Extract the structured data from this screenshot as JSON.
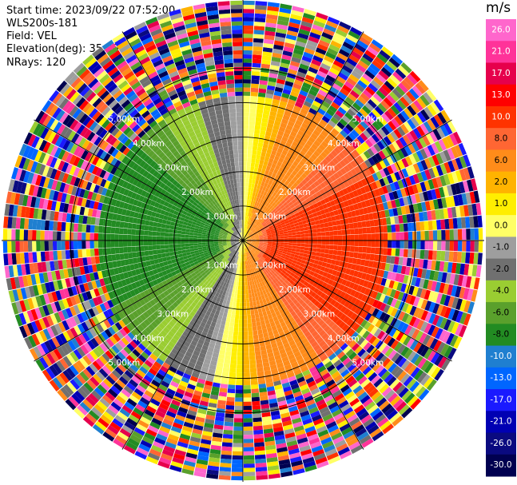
{
  "header": {
    "start_time": "Start time: 2023/09/22 07:52:00",
    "instrument": "WLS200s-181",
    "field": "Field: VEL",
    "elevation": "Elevation(deg): 35.30",
    "nrays": "NRays: 120"
  },
  "colorbar": {
    "unit": "m/s",
    "ticks": [
      "26.0",
      "21.0",
      "17.0",
      "13.0",
      "10.0",
      "8.0",
      "6.0",
      "2.0",
      "1.0",
      "0.0",
      "-1.0",
      "-2.0",
      "-4.0",
      "-6.0",
      "-8.0",
      "-10.0",
      "-13.0",
      "-17.0",
      "-21.0",
      "-26.0",
      "-30.0"
    ],
    "colors": [
      "#ff66cc",
      "#ff3399",
      "#e6004c",
      "#ff0000",
      "#ff3300",
      "#ff6633",
      "#ff8c1a",
      "#ffb300",
      "#ffee00",
      "#ffff66",
      "#9e9e9e",
      "#707070",
      "#9acd32",
      "#5aa02c",
      "#228b22",
      "#1f7fd0",
      "#0066ff",
      "#1a1aff",
      "#0000b3",
      "#0a0a80",
      "#000050"
    ]
  },
  "chart_data": {
    "type": "heatmap",
    "subtype": "polar PPI radial velocity",
    "field": "VEL",
    "units": "m/s",
    "elevation_deg": 35.3,
    "n_rays": 120,
    "range_rings_km": [
      1.0,
      2.0,
      3.0,
      4.0,
      5.0
    ],
    "ring_labels": [
      "1.00km",
      "2.00km",
      "3.00km",
      "4.00km",
      "5.00km"
    ],
    "max_display_range_km": 7.0,
    "velocity_range": [
      -30,
      26
    ],
    "pattern": "Near range: positive (yellow-orange) velocities toward east, negative (green) toward west; beyond ~4 km noisy mixed-color returns.",
    "sectors": [
      {
        "azimuth_center_deg": 90,
        "range_km": [
          0.5,
          4.0
        ],
        "velocity_ms": 9
      },
      {
        "azimuth_center_deg": 270,
        "range_km": [
          0.5,
          4.0
        ],
        "velocity_ms": -6
      },
      {
        "azimuth_center_deg": 0,
        "range_km": [
          2.0,
          4.0
        ],
        "velocity_ms": 1.5
      },
      {
        "azimuth_center_deg": 180,
        "range_km": [
          0.5,
          4.0
        ],
        "velocity_ms": -1
      }
    ]
  }
}
